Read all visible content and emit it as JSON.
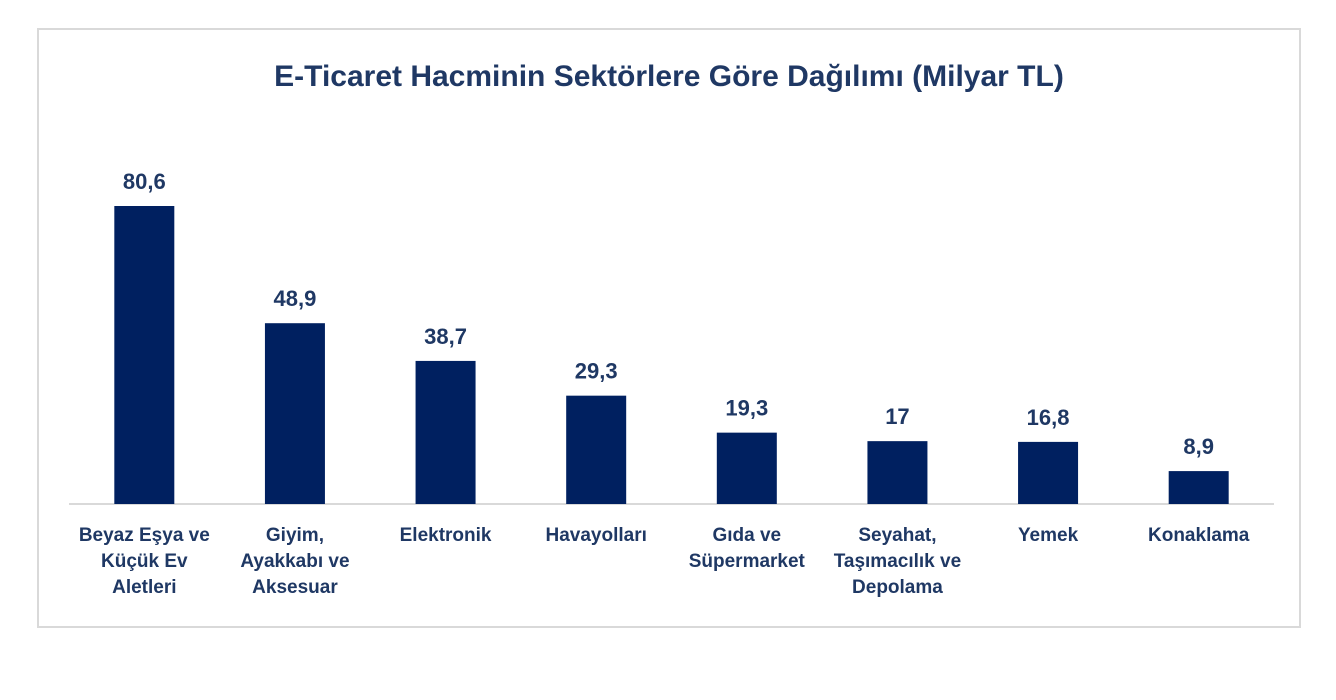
{
  "chart_data": {
    "type": "bar",
    "title": "E-Ticaret Hacminin Sektörlere Göre Dağılımı (Milyar TL)",
    "categories": [
      [
        "Beyaz Eşya ve",
        "Küçük Ev",
        "Aletleri"
      ],
      [
        "Giyim,",
        "Ayakkabı ve",
        "Aksesuar"
      ],
      [
        "Elektronik"
      ],
      [
        "Havayolları"
      ],
      [
        "Gıda ve",
        "Süpermarket"
      ],
      [
        "Seyahat,",
        "Taşımacılık ve",
        "Depolama"
      ],
      [
        "Yemek"
      ],
      [
        "Konaklama"
      ]
    ],
    "values": [
      80.6,
      48.9,
      38.7,
      29.3,
      19.3,
      17,
      16.8,
      8.9
    ],
    "value_labels": [
      "80,6",
      "48,9",
      "38,7",
      "29,3",
      "19,3",
      "17",
      "16,8",
      "8,9"
    ],
    "xlabel": "",
    "ylabel": "",
    "ylim": [
      0,
      80.6
    ],
    "grid": false,
    "legend": "none",
    "colors": {
      "bar": "#002060",
      "text": "#1f3864",
      "axis": "#d9d9d9",
      "frame": "#d9d9d9"
    }
  }
}
